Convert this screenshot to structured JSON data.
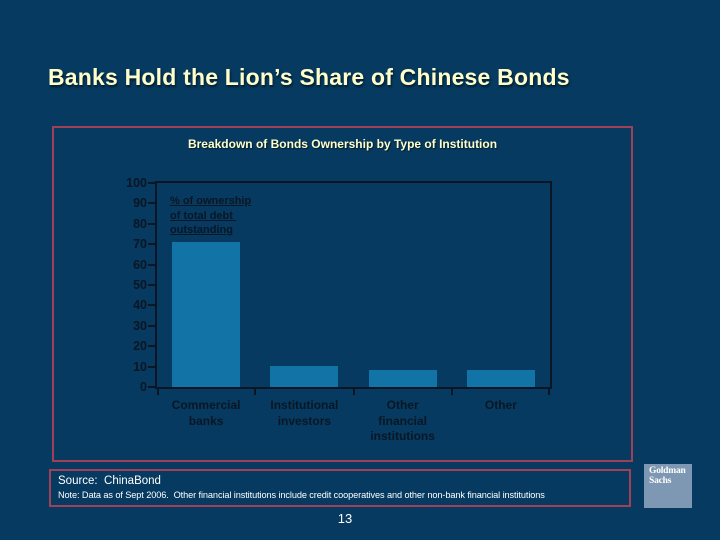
{
  "slide": {
    "title": "Banks Hold the Lion’s Share of Chinese Bonds",
    "page_number": "13"
  },
  "chart_data": {
    "type": "bar",
    "title": "Breakdown of Bonds Ownership by Type of Institution",
    "categories": [
      "Commercial banks",
      "Institutional investors",
      "Other financial institutions",
      "Other"
    ],
    "categories_wrapped": [
      [
        "Commercial",
        "banks"
      ],
      [
        "Institutional",
        "investors"
      ],
      [
        "Other",
        "financial",
        "institutions"
      ],
      [
        "Other"
      ]
    ],
    "values": [
      71,
      10.5,
      8.5,
      8.5
    ],
    "annotation": "% of ownership of total debt outstanding",
    "annotation_lines": [
      "% of ownership",
      "of total debt ",
      "outstanding"
    ],
    "xlabel": "",
    "ylabel": "",
    "ylim": [
      0,
      100
    ],
    "yticks": [
      0,
      10,
      20,
      30,
      40,
      50,
      60,
      70,
      80,
      90,
      100
    ],
    "grid": false,
    "legend": false,
    "bar_color": "#1173a6",
    "axis_color": "#0a1624"
  },
  "footer": {
    "source_label": "Source:  ChinaBond",
    "note": "Note: Data as of Sept 2006.  Other financial institutions include credit cooperatives and other non-bank financial institutions"
  },
  "logo": {
    "name": "Goldman Sachs",
    "line1": "Goldman",
    "line2": "Sachs"
  },
  "colors": {
    "background": "#063a60",
    "title_text": "#ffffcc",
    "accent_border": "#a04058",
    "bar": "#1173a6",
    "axis_text": "#0a1624",
    "footer_text": "#ffffff",
    "logo_background": "#7e97b2"
  }
}
